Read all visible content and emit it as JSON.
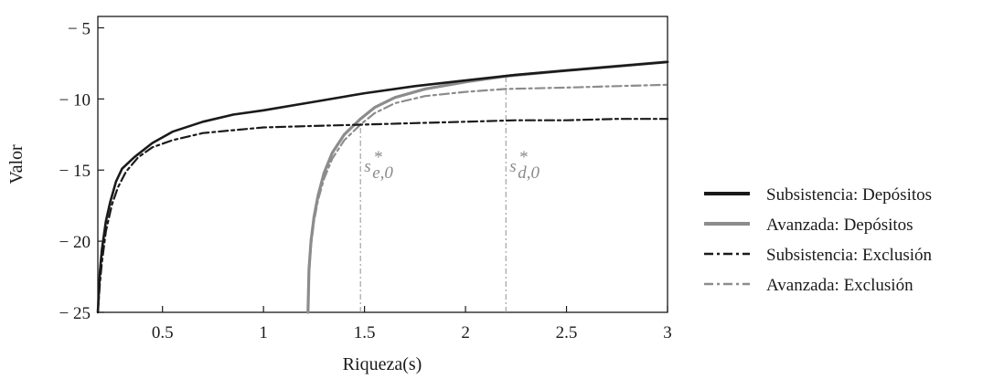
{
  "chart_data": {
    "type": "line",
    "xlabel": "Riqueza(s)",
    "ylabel": "Valor",
    "xlim": [
      0.18,
      3.0
    ],
    "ylim": [
      -25,
      -4.2
    ],
    "xticks": [
      {
        "value": 0.5,
        "label": "0.5"
      },
      {
        "value": 1,
        "label": "1"
      },
      {
        "value": 1.5,
        "label": "1.5"
      },
      {
        "value": 2,
        "label": "2"
      },
      {
        "value": 2.5,
        "label": "2.5"
      },
      {
        "value": 3,
        "label": "3"
      }
    ],
    "yticks": [
      {
        "value": -5,
        "label": "− 5"
      },
      {
        "value": -10,
        "label": "− 10"
      },
      {
        "value": -15,
        "label": "− 15"
      },
      {
        "value": -20,
        "label": "− 20"
      },
      {
        "value": -25,
        "label": "− 25"
      }
    ],
    "grid": false,
    "legend_position": "right",
    "series": [
      {
        "name": "Subsistencia: Depósitos",
        "color": "#1a1a1a",
        "style": "solid",
        "x": [
          0.18,
          0.19,
          0.2,
          0.22,
          0.24,
          0.27,
          0.3,
          0.36,
          0.45,
          0.55,
          0.7,
          0.85,
          1.0,
          1.25,
          1.5,
          1.75,
          2.0,
          2.25,
          2.5,
          2.75,
          3.0
        ],
        "y": [
          -25,
          -22.2,
          -20.6,
          -18.6,
          -17.3,
          -15.8,
          -14.9,
          -14.1,
          -13.1,
          -12.3,
          -11.6,
          -11.1,
          -10.8,
          -10.2,
          -9.6,
          -9.1,
          -8.7,
          -8.3,
          -8.0,
          -7.7,
          -7.4
        ]
      },
      {
        "name": "Avanzada: Depósitos",
        "color": "#8c8c8c",
        "style": "solid",
        "x": [
          1.22,
          1.225,
          1.235,
          1.25,
          1.27,
          1.3,
          1.34,
          1.4,
          1.48,
          1.55,
          1.65,
          1.8,
          2.0,
          2.2,
          2.5,
          2.75,
          3.0
        ],
        "y": [
          -25,
          -22.0,
          -20.0,
          -18.3,
          -16.8,
          -15.2,
          -13.8,
          -12.5,
          -11.4,
          -10.6,
          -9.9,
          -9.3,
          -8.8,
          -8.4,
          -8.0,
          -7.7,
          -7.4
        ]
      },
      {
        "name": "Subsistencia: Exclusión",
        "color": "#1a1a1a",
        "style": "dashdot",
        "x": [
          0.18,
          0.19,
          0.2,
          0.22,
          0.25,
          0.28,
          0.32,
          0.38,
          0.45,
          0.55,
          0.7,
          0.85,
          1.0,
          1.25,
          1.5,
          1.75,
          2.0,
          2.25,
          2.5,
          2.75,
          3.0
        ],
        "y": [
          -25,
          -23.0,
          -21.5,
          -19.3,
          -17.4,
          -16.2,
          -15.1,
          -14.1,
          -13.4,
          -12.9,
          -12.4,
          -12.2,
          -12.0,
          -11.9,
          -11.8,
          -11.7,
          -11.6,
          -11.5,
          -11.5,
          -11.4,
          -11.4
        ]
      },
      {
        "name": "Avanzada: Exclusión",
        "color": "#8c8c8c",
        "style": "dashdot",
        "x": [
          1.22,
          1.225,
          1.235,
          1.25,
          1.27,
          1.3,
          1.34,
          1.4,
          1.48,
          1.55,
          1.65,
          1.8,
          2.0,
          2.2,
          2.5,
          2.75,
          3.0
        ],
        "y": [
          -25,
          -22.3,
          -20.3,
          -18.6,
          -17.1,
          -15.6,
          -14.2,
          -12.9,
          -11.8,
          -11.0,
          -10.3,
          -9.8,
          -9.5,
          -9.3,
          -9.2,
          -9.1,
          -9.0
        ]
      }
    ],
    "annotations": [
      {
        "label_base": "s",
        "label_sup": "*",
        "label_sub": "e,0",
        "x": 1.48,
        "y_from": -25,
        "y_to": -11.7
      },
      {
        "label_base": "s",
        "label_sup": "*",
        "label_sub": "d,0",
        "x": 2.2,
        "y_from": -25,
        "y_to": -8.4
      }
    ]
  }
}
